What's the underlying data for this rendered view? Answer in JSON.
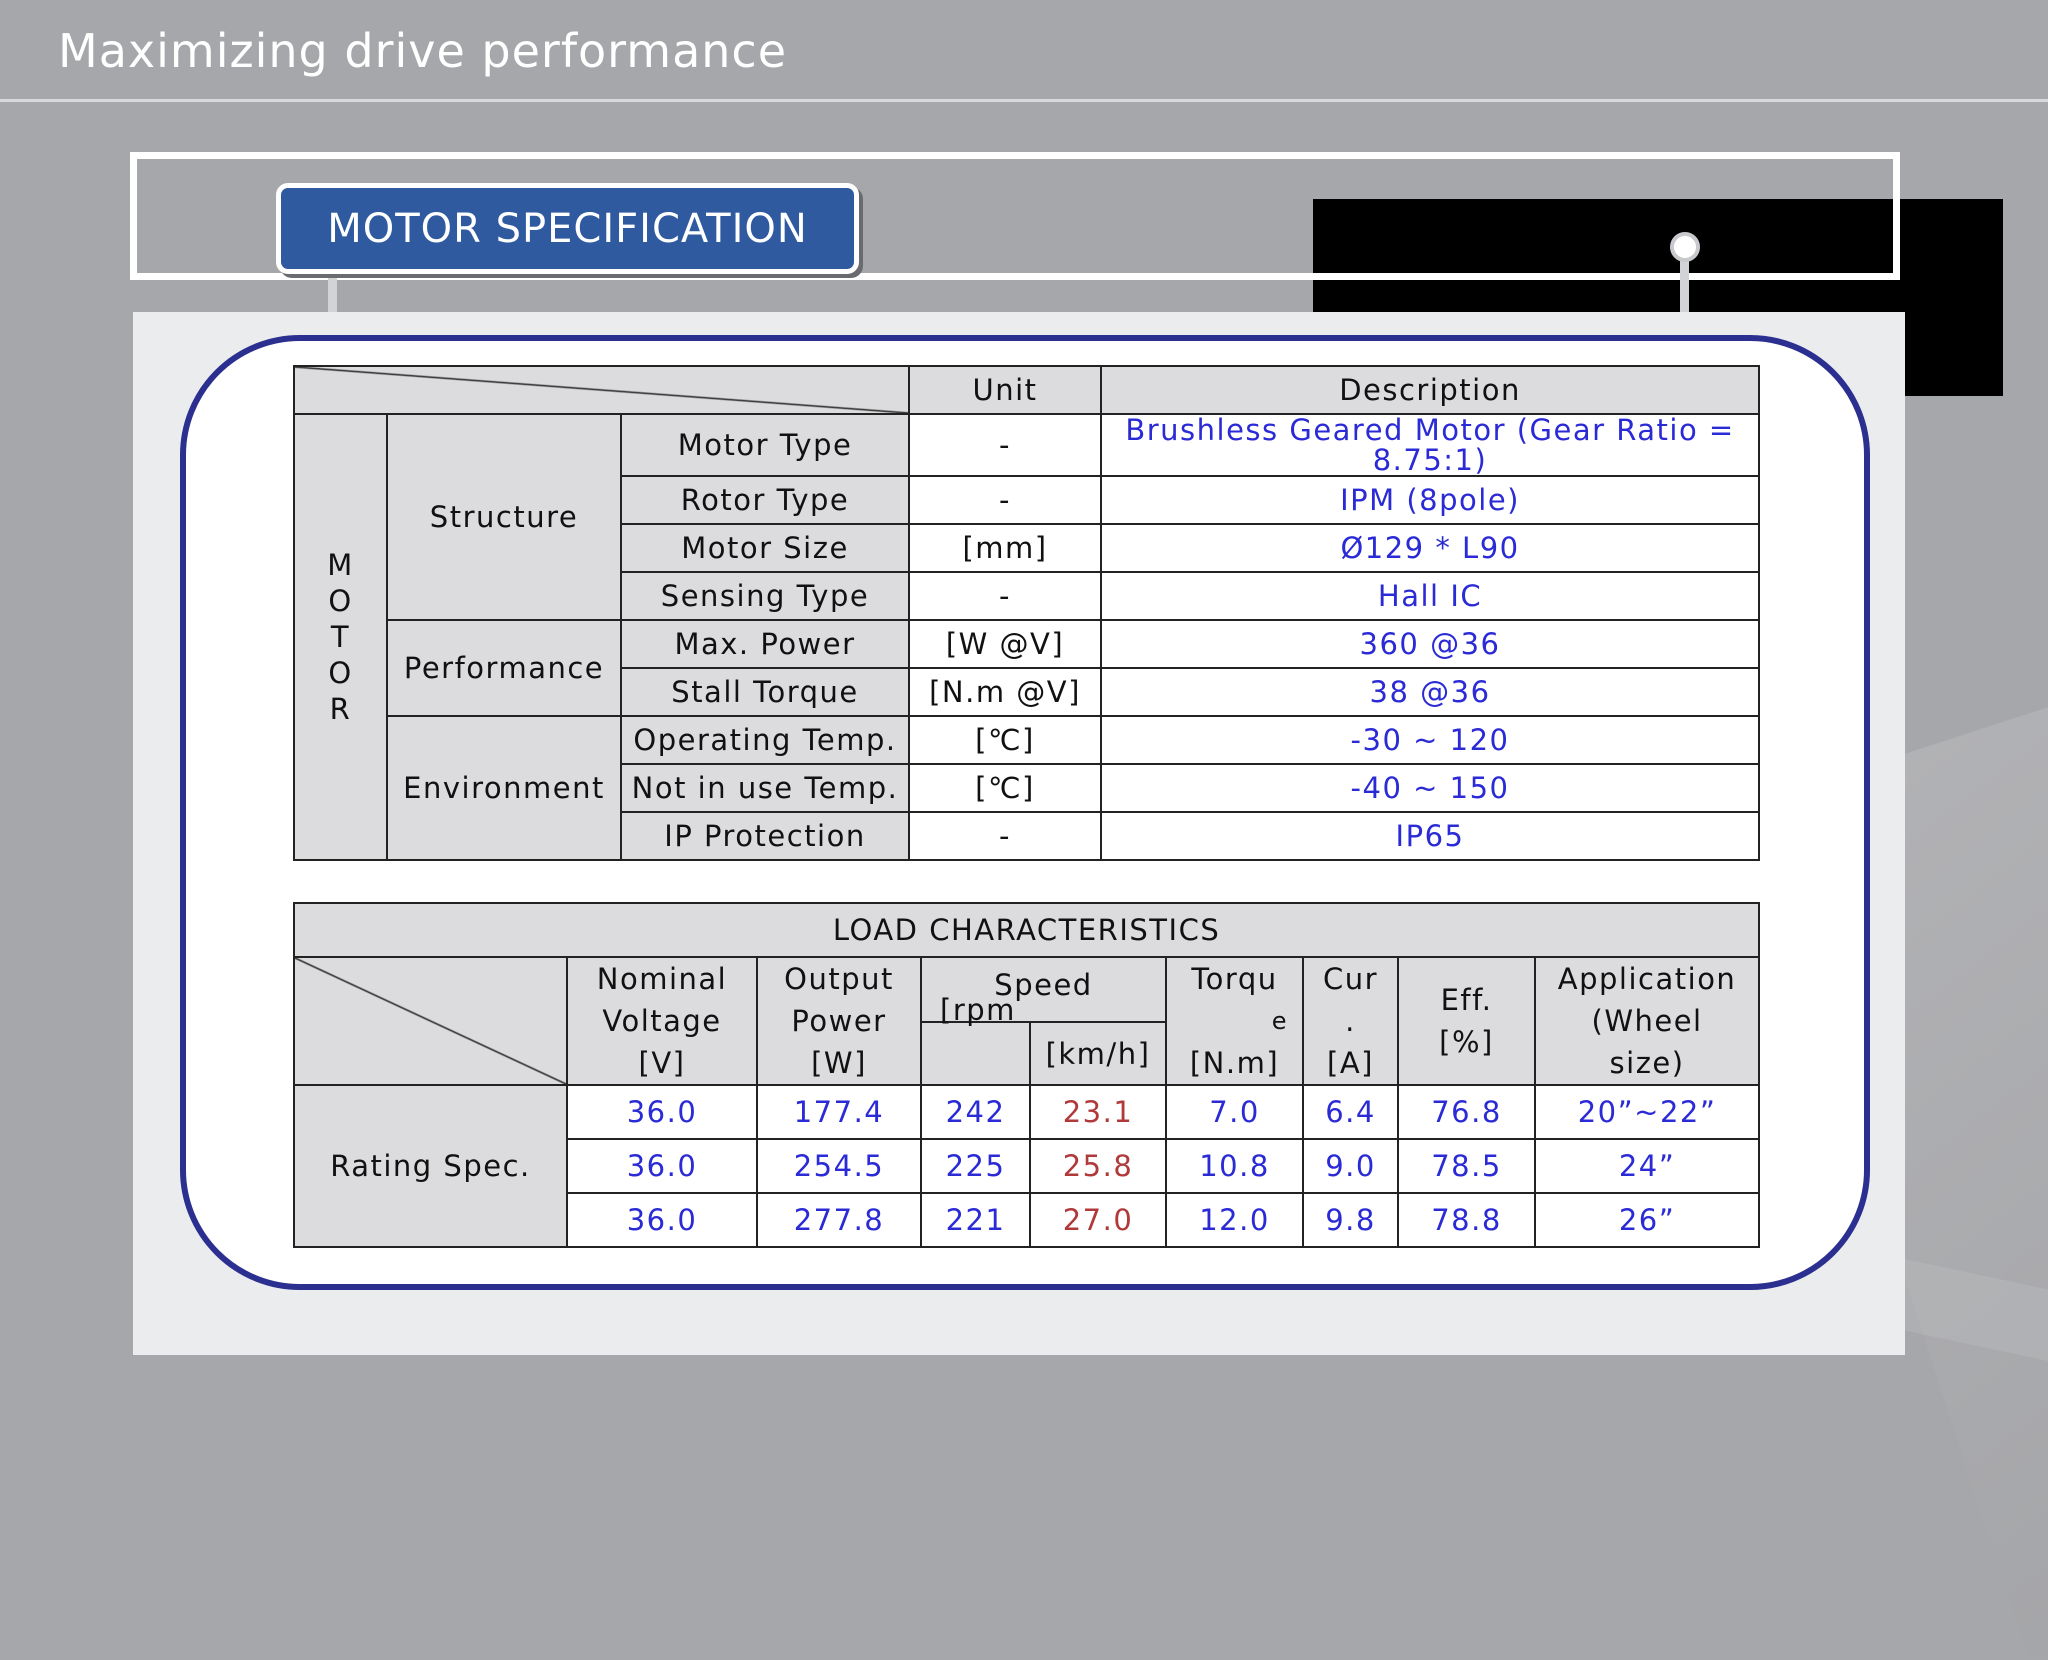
{
  "title": "Maximizing drive performance",
  "badge": "MOTOR SPECIFICATION",
  "motor_table": {
    "headers": {
      "unit": "Unit",
      "description": "Description"
    },
    "side_label": [
      "M",
      "O",
      "T",
      "O",
      "R"
    ],
    "groups": {
      "structure": "Structure",
      "performance": "Performance",
      "environment": "Environment"
    },
    "rows": [
      {
        "item": "Motor Type",
        "unit": "-",
        "desc": "Brushless Geared Motor (Gear Ratio = 8.75:1)"
      },
      {
        "item": "Rotor Type",
        "unit": "-",
        "desc": "IPM (8pole)"
      },
      {
        "item": "Motor Size",
        "unit": "[mm]",
        "desc": "Ø129 * L90"
      },
      {
        "item": "Sensing Type",
        "unit": "-",
        "desc": "Hall IC"
      },
      {
        "item": "Max. Power",
        "unit": "[W @V]",
        "desc": "360 @36"
      },
      {
        "item": "Stall Torque",
        "unit": "[N.m @V]",
        "desc": "38 @36"
      },
      {
        "item": "Operating Temp.",
        "unit": "[℃]",
        "desc": "-30 ~ 120"
      },
      {
        "item": "Not in use Temp.",
        "unit": "[℃]",
        "desc": "-40 ~ 150"
      },
      {
        "item": "IP Protection",
        "unit": "-",
        "desc": "IP65"
      }
    ]
  },
  "load_table": {
    "title": "LOAD CHARACTERISTICS",
    "headers": {
      "voltage": [
        "Nominal",
        "Voltage",
        "[V]"
      ],
      "power": [
        "Output",
        "Power",
        "[W]"
      ],
      "speed": "Speed",
      "rpm": "[rpm",
      "kmh": "[km/h]",
      "torque": [
        "Torqu",
        "e",
        "[N.m]"
      ],
      "current": [
        "Cur",
        ".",
        "[A]"
      ],
      "eff": [
        "Eff.",
        "[%]"
      ],
      "app": [
        "Application",
        "(Wheel",
        "size)"
      ]
    },
    "row_label": "Rating Spec.",
    "rows": [
      {
        "v": "36.0",
        "w": "177.4",
        "rpm": "242",
        "kmh": "23.1",
        "nm": "7.0",
        "a": "6.4",
        "eff": "76.8",
        "app": "20”~22”"
      },
      {
        "v": "36.0",
        "w": "254.5",
        "rpm": "225",
        "kmh": "25.8",
        "nm": "10.8",
        "a": "9.0",
        "eff": "78.5",
        "app": "24”"
      },
      {
        "v": "36.0",
        "w": "277.8",
        "rpm": "221",
        "kmh": "27.0",
        "nm": "12.0",
        "a": "9.8",
        "eff": "78.8",
        "app": "26”"
      }
    ]
  }
}
